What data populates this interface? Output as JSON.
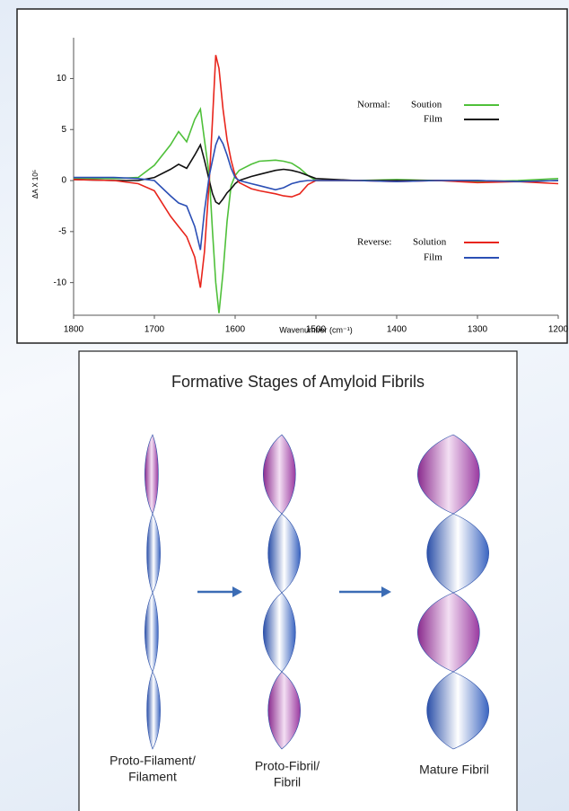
{
  "chart_data": {
    "type": "line",
    "xlabel": "Wavenumber (cm⁻¹)",
    "ylabel": "ΔA X 10⁵",
    "x": [
      1800,
      1750,
      1720,
      1700,
      1680,
      1670,
      1660,
      1650,
      1643,
      1638,
      1632,
      1628,
      1624,
      1620,
      1615,
      1610,
      1605,
      1600,
      1595,
      1580,
      1570,
      1550,
      1540,
      1530,
      1520,
      1510,
      1500,
      1450,
      1400,
      1350,
      1300,
      1250,
      1200
    ],
    "series": [
      {
        "name": "Soution",
        "color": "#4fc03a",
        "values": [
          0.2,
          0.2,
          0.3,
          1.5,
          3.5,
          4.8,
          3.8,
          6,
          7,
          4,
          0.5,
          -5,
          -10,
          -13,
          -9,
          -4,
          -0.5,
          0.5,
          1,
          1.6,
          1.9,
          2,
          1.9,
          1.7,
          1.2,
          0.5,
          0,
          0,
          0.1,
          0,
          -0.1,
          0,
          0.2
        ]
      },
      {
        "name": "Film",
        "color": "#111111",
        "values": [
          0.1,
          0,
          0,
          0.3,
          1.1,
          1.6,
          1.2,
          2.5,
          3.5,
          2,
          0,
          -1.3,
          -2.1,
          -2.3,
          -1.8,
          -1.2,
          -0.8,
          -0.3,
          0,
          0.4,
          0.6,
          1,
          1.1,
          1,
          0.8,
          0.5,
          0.2,
          0,
          0,
          0,
          0,
          -0.1,
          0
        ]
      },
      {
        "name": "Solution",
        "color": "#e8251c",
        "values": [
          0.1,
          0,
          -0.3,
          -1,
          -3.5,
          -4.5,
          -5.5,
          -7.5,
          -10.5,
          -7,
          0,
          6,
          12.3,
          11,
          7,
          4,
          2,
          0.5,
          -0.2,
          -0.8,
          -1,
          -1.3,
          -1.5,
          -1.6,
          -1.3,
          -0.4,
          0,
          0,
          -0.1,
          0,
          -0.2,
          -0.1,
          -0.3
        ]
      },
      {
        "name": "Film",
        "color": "#2b4fb5",
        "values": [
          0.3,
          0.3,
          0.2,
          0,
          -1.5,
          -2.2,
          -2.5,
          -4.5,
          -6.8,
          -3,
          0.5,
          2,
          3.5,
          4.3,
          3.6,
          2.5,
          1.2,
          0.3,
          0,
          -0.3,
          -0.5,
          -0.9,
          -0.7,
          -0.3,
          -0.1,
          0,
          0,
          0,
          -0.1,
          0,
          0,
          -0.1,
          0
        ]
      }
    ],
    "legend_headers": [
      "Normal:",
      "Reverse:"
    ],
    "xlim": [
      1800,
      1200
    ],
    "xticks": [
      1800,
      1700,
      1600,
      1500,
      1400,
      1300,
      1200
    ],
    "ylim": [
      -13.2,
      14
    ],
    "yticks": [
      10,
      5,
      0,
      -5,
      -10
    ]
  },
  "diagram": {
    "title": "Formative Stages of Amyloid Fibrils",
    "stages": [
      {
        "lines": [
          "Proto-Filament/",
          "Filament"
        ]
      },
      {
        "lines": [
          "Proto-Fibril/",
          "Fibril"
        ]
      },
      {
        "lines": [
          "Mature Fibril"
        ]
      }
    ]
  }
}
